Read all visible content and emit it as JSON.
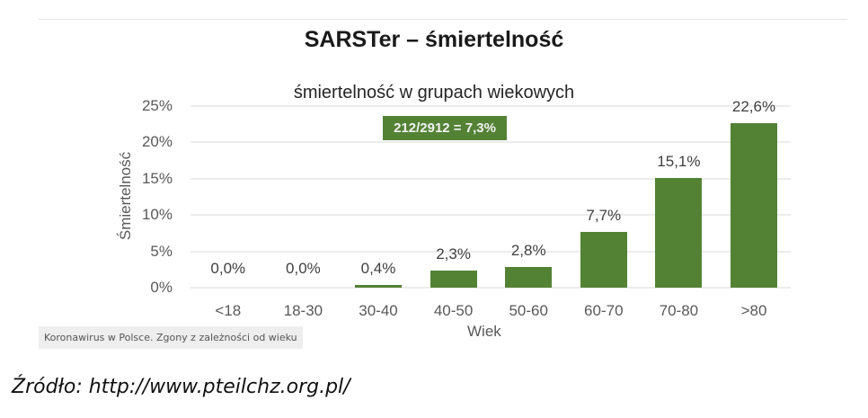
{
  "slide": {
    "title": "SARSTer – śmiertelność"
  },
  "chart_data": {
    "type": "bar",
    "title": "śmiertelność w grupach wiekowych",
    "xlabel": "Wiek",
    "ylabel": "Śmiertelność",
    "categories": [
      "<18",
      "18-30",
      "30-40",
      "40-50",
      "50-60",
      "60-70",
      "70-80",
      ">80"
    ],
    "values": [
      0.0,
      0.0,
      0.4,
      2.3,
      2.8,
      7.7,
      15.1,
      22.6
    ],
    "value_labels": [
      "0,0%",
      "0,0%",
      "0,4%",
      "2,3%",
      "2,8%",
      "7,7%",
      "15,1%",
      "22,6%"
    ],
    "yticks": [
      "0%",
      "5%",
      "10%",
      "15%",
      "20%",
      "25%"
    ],
    "ylim": [
      0,
      25
    ],
    "grid": true,
    "bar_color": "#548235",
    "annotations": [
      "212/2912 = 7,3%"
    ]
  },
  "caption": "Koronawirus w Polsce. Zgony z zależności od wieku",
  "source": "Źródło: http://www.pteilchz.org.pl/"
}
